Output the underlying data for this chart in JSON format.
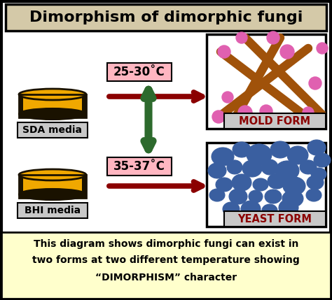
{
  "title": "Dimorphism of dimorphic fungi",
  "title_fontsize": 16,
  "bg_color": "#d4c9a8",
  "main_bg": "#ffffff",
  "bottom_bg": "#ffffcc",
  "border_color": "#000000",
  "sda_label": "SDA media",
  "bhi_label": "BHI media",
  "temp1_label": "25-30˚C",
  "temp2_label": "35-37˚C",
  "mold_label": "MOLD FORM",
  "yeast_label": "YEAST FORM",
  "bottom_text_line1": "This diagram shows dimorphic fungi can exist in",
  "bottom_text_line2": "two forms at two different temperature showing",
  "bottom_text_line3": "“DIMORPHISM” character",
  "disk_color": "#f0a800",
  "disk_edge": "#1a1200",
  "arrow_red": "#8b0000",
  "arrow_green": "#2d6a2d",
  "temp_box_color": "#ffb6c1",
  "label_box_color": "#c8c8c8",
  "mold_hyphae_color": "#a0520a",
  "mold_spore_color": "#e060b0",
  "yeast_color": "#3a5fa0"
}
